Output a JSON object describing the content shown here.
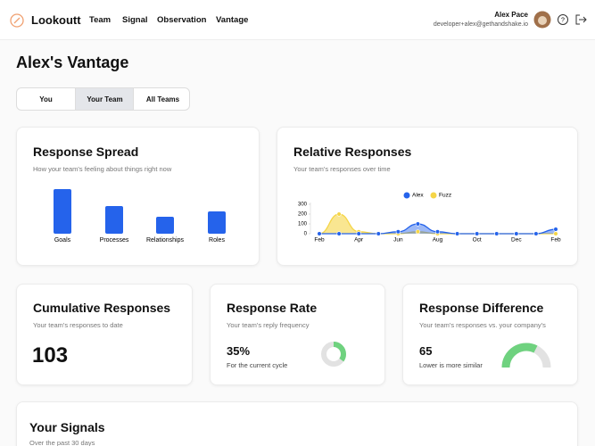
{
  "nav": {
    "logo": "Lookoutt",
    "links": [
      "Team",
      "Signal",
      "Observation",
      "Vantage"
    ],
    "user_name": "Alex Pace",
    "user_email": "developer+alex@gethandshake.io"
  },
  "page_title": "Alex's Vantage",
  "tabs": {
    "items": [
      "You",
      "Your Team",
      "All Teams"
    ],
    "selected": 1
  },
  "response_spread": {
    "title": "Response Spread",
    "subtitle": "How your team's feeling about things right now",
    "chart_data": {
      "type": "bar",
      "categories": [
        "Goals",
        "Processes",
        "Relationships",
        "Roles"
      ],
      "values": [
        50,
        31,
        19,
        25
      ],
      "color": "#2563eb"
    }
  },
  "relative_responses": {
    "title": "Relative Responses",
    "subtitle": "Your team's responses over time",
    "chart_data": {
      "type": "line",
      "x": [
        "Feb",
        null,
        "Apr",
        null,
        "Jun",
        null,
        "Aug",
        null,
        "Oct",
        null,
        "Dec",
        null,
        "Feb"
      ],
      "series": [
        {
          "name": "Alex",
          "color": "#2563eb",
          "values": [
            0,
            0,
            0,
            0,
            20,
            100,
            20,
            0,
            0,
            0,
            0,
            0,
            45
          ]
        },
        {
          "name": "Fuzz",
          "color": "#f5d547",
          "values": [
            0,
            200,
            20,
            0,
            0,
            20,
            0,
            0,
            0,
            0,
            0,
            0,
            0
          ]
        }
      ],
      "ylim": [
        0,
        300
      ],
      "yticks": [
        0,
        100,
        200,
        300
      ],
      "legend": "top"
    }
  },
  "cumulative_responses": {
    "title": "Cumulative Responses",
    "subtitle": "Your team's responses to date",
    "value": 103
  },
  "response_rate": {
    "title": "Response Rate",
    "subtitle": "Your team's reply frequency",
    "value": {
      "value": 35,
      "label": "35%"
    },
    "caption": "For the current cycle",
    "color": "#6fd27f"
  },
  "response_difference": {
    "title": "Response Difference",
    "subtitle": "Your team's responses vs. your company's",
    "value": 65,
    "caption": "Lower is more similar",
    "color": "#6fd27f"
  },
  "signals": {
    "title": "Your Signals",
    "subtitle": "Over the past 30 days"
  }
}
